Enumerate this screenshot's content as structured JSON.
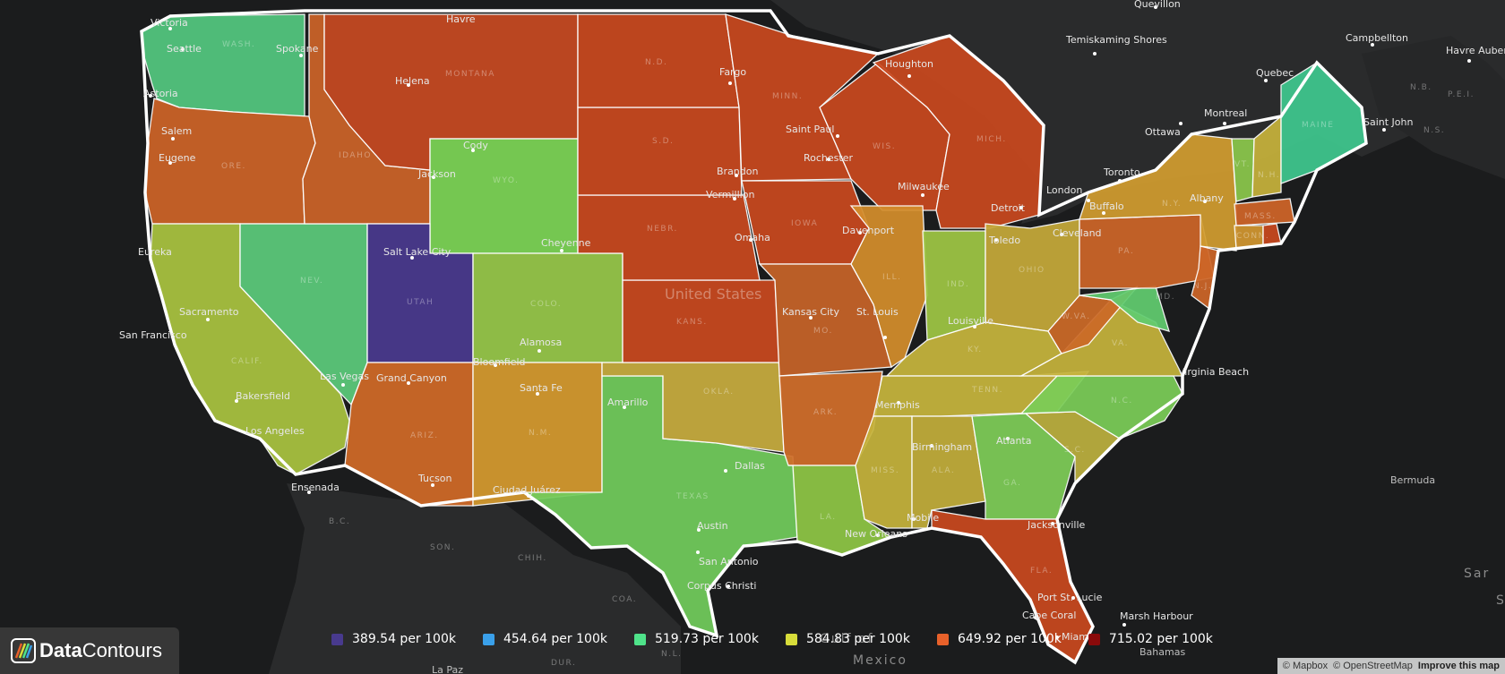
{
  "legend": {
    "items": [
      {
        "label": "389.54 per 100k",
        "color": "#483a8e"
      },
      {
        "label": "454.64 per 100k",
        "color": "#3aa0ea"
      },
      {
        "label": "519.73 per 100k",
        "color": "#4fe38a"
      },
      {
        "label": "584.83 per 100k",
        "color": "#d7dc3a"
      },
      {
        "label": "649.92 per 100k",
        "color": "#e8612a"
      },
      {
        "label": "715.02 per 100k",
        "color": "#8a0a0a"
      }
    ]
  },
  "brand": {
    "name_bold": "Data",
    "name_rest": "Contours"
  },
  "attribution": {
    "mapbox": "© Mapbox",
    "osm": "© OpenStreetMap",
    "improve": "Improve this map"
  },
  "map_labels": {
    "country": "United States",
    "cities": [
      "Seattle",
      "Spokane",
      "Astoria",
      "Salem",
      "Eugene",
      "Eureka",
      "San Francisco",
      "Sacramento",
      "Bakersfield",
      "Los Angeles",
      "Ensenada",
      "Las Vegas",
      "Salt Lake City",
      "Helena",
      "Havre",
      "Cody",
      "Jackson",
      "Cheyenne",
      "Grand Canyon",
      "Tucson",
      "Santa Fe",
      "Alamosa",
      "Bloomfield",
      "Ciudad Juárez",
      "Amarillo",
      "Dallas",
      "Austin",
      "San Antonio",
      "Corpus Christi",
      "Fargo",
      "Brandon",
      "Vermillion",
      "Omaha",
      "Kansas City",
      "Saint Paul",
      "Rochester",
      "Davenport",
      "Houghton",
      "Milwaukee",
      "Detroit",
      "Toledo",
      "Cleveland",
      "St. Louis",
      "Louisville",
      "Memphis",
      "Birmingham",
      "Atlanta",
      "Mobile",
      "New Orleans",
      "Jacksonville",
      "Port St. Lucie",
      "Cape Coral",
      "Miami",
      "Marsh Harbour",
      "Virginia Beach",
      "Buffalo",
      "Albany",
      "Toronto",
      "London",
      "Ottawa",
      "Montreal",
      "Quebec",
      "Saint John",
      "Campbellton",
      "Havre Aubert Island",
      "Temiskaming Shores",
      "Quevillon",
      "Victoria",
      "La Paz",
      "Bermuda",
      "Bahamas",
      "Mexico"
    ],
    "states": [
      "WASH.",
      "ORE.",
      "CALIF.",
      "NEV.",
      "IDAHO",
      "MONTANA",
      "WYO.",
      "UTAH",
      "COLO.",
      "ARIZ.",
      "N.M.",
      "TEXAS",
      "OKLA.",
      "KANS.",
      "NEBR.",
      "S.D.",
      "N.D.",
      "MINN.",
      "IOWA",
      "MO.",
      "ARK.",
      "LA.",
      "MISS.",
      "ALA.",
      "GA.",
      "FLA.",
      "S.C.",
      "N.C.",
      "TENN.",
      "KY.",
      "VA.",
      "W.VA.",
      "OHIO",
      "IND.",
      "ILL.",
      "WIS.",
      "MICH.",
      "PA.",
      "N.Y.",
      "VT.",
      "N.H.",
      "MAINE",
      "MASS.",
      "CONN.",
      "MD.",
      "N.J.",
      "B.C.",
      "SON.",
      "CHIH.",
      "COA.",
      "DUR.",
      "N.L.",
      "N.B.",
      "N.S.",
      "P.E.I."
    ],
    "sea": [
      "Gulf of",
      "Sar",
      "S"
    ]
  },
  "colors": {
    "background": "#1b1c1d",
    "land_dark": "#2b2c2d",
    "utah": "#4a3a8f",
    "green": "#6cd35d",
    "teal": "#3fcf8e",
    "yellow_green": "#a8c944",
    "olive": "#c7b83d",
    "mustard": "#d69b30",
    "orange": "#cf6a28",
    "red_orange": "#c94a22"
  }
}
